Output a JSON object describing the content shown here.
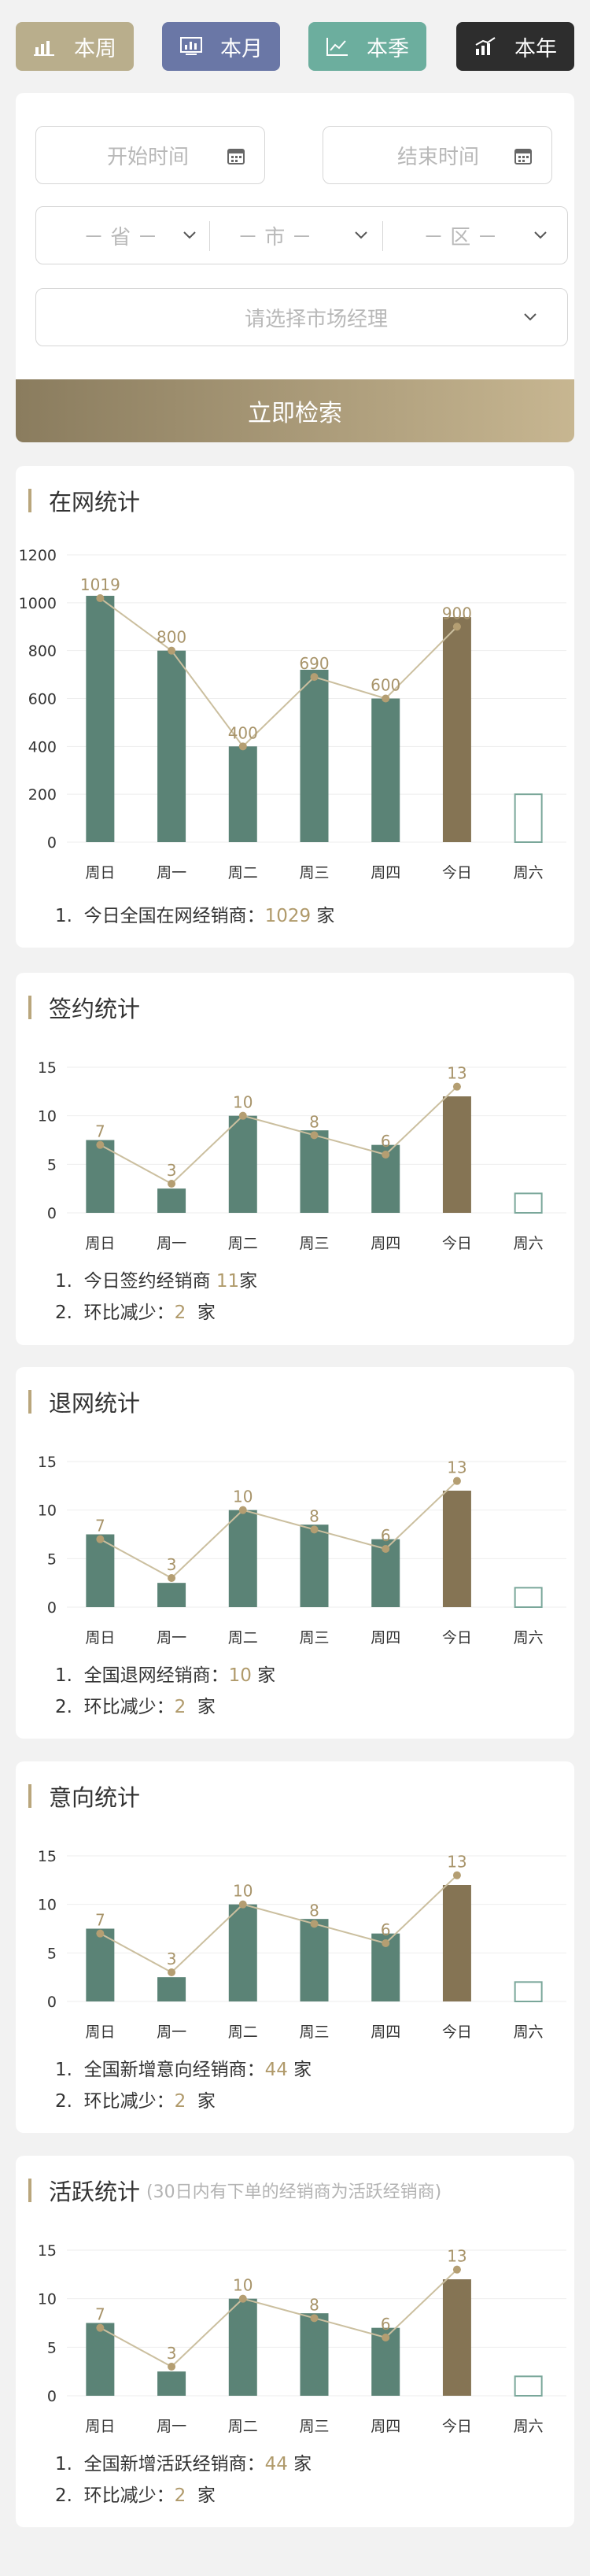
{
  "period_tabs": [
    {
      "label": "本周",
      "icon": "bar-chart-icon"
    },
    {
      "label": "本月",
      "icon": "presentation-chart-icon"
    },
    {
      "label": "本季",
      "icon": "line-chart-icon"
    },
    {
      "label": "本年",
      "icon": "trend-chart-icon"
    }
  ],
  "filters": {
    "start_placeholder": "开始时间",
    "end_placeholder": "结束时间",
    "province": "－ 省 －",
    "city": "－ 市 －",
    "district": "－ 区 －",
    "manager_placeholder": "请选择市场经理",
    "search_label": "立即检索"
  },
  "colors": {
    "bar": "#5b8376",
    "today_bar": "#857454",
    "line": "#cbbf9f",
    "dot": "#b49e72",
    "accent": "#b09a6b"
  },
  "cards": [
    {
      "title": "在网统计",
      "subtitle": "",
      "notes": [
        {
          "prefix": "1.",
          "text": "今日全国在网经销商：",
          "value": "1029",
          "unit": " 家"
        }
      ]
    },
    {
      "title": "签约统计",
      "subtitle": "",
      "notes": [
        {
          "prefix": "1.",
          "text": "今日签约经销商 ",
          "value": "11",
          "unit": "家"
        },
        {
          "prefix": "2.",
          "text": "环比减少：",
          "value": "2",
          "unit": "  家"
        }
      ]
    },
    {
      "title": "退网统计",
      "subtitle": "",
      "notes": [
        {
          "prefix": "1.",
          "text": "全国退网经销商：",
          "value": "10",
          "unit": " 家"
        },
        {
          "prefix": "2.",
          "text": "环比减少：",
          "value": "2",
          "unit": "  家"
        }
      ]
    },
    {
      "title": "意向统计",
      "subtitle": "",
      "notes": [
        {
          "prefix": "1.",
          "text": "全国新增意向经销商：",
          "value": "44",
          "unit": " 家"
        },
        {
          "prefix": "2.",
          "text": "环比减少：",
          "value": "2",
          "unit": "  家"
        }
      ]
    },
    {
      "title": "活跃统计",
      "subtitle": "(30日内有下单的经销商为活跃经销商)",
      "notes": [
        {
          "prefix": "1.",
          "text": "全国新增活跃经销商：",
          "value": "44",
          "unit": " 家"
        },
        {
          "prefix": "2.",
          "text": "环比减少：",
          "value": "2",
          "unit": "  家"
        }
      ]
    }
  ],
  "chart_data": [
    {
      "type": "bar",
      "categories": [
        "周日",
        "周一",
        "周二",
        "周三",
        "周四",
        "今日",
        "周六"
      ],
      "values": [
        1029,
        800,
        400,
        720,
        600,
        940,
        200
      ],
      "line_values": [
        1019,
        800,
        400,
        690,
        600,
        900
      ],
      "label_values": [
        1019,
        800,
        400,
        690,
        600,
        900
      ],
      "yticks": [
        0,
        200,
        400,
        600,
        800,
        1000,
        1200
      ],
      "ylim": [
        0,
        1200
      ],
      "highlight_index": 5,
      "outline_index": 6,
      "grid": true
    },
    {
      "type": "bar",
      "categories": [
        "周日",
        "周一",
        "周二",
        "周三",
        "周四",
        "今日",
        "周六"
      ],
      "values": [
        7.5,
        2.5,
        10,
        8.5,
        7,
        12,
        2
      ],
      "line_values": [
        7,
        3,
        10,
        8,
        6,
        13
      ],
      "label_values": [
        7,
        3,
        10,
        8,
        6,
        13
      ],
      "yticks": [
        0,
        5,
        10,
        15
      ],
      "ylim": [
        0,
        15
      ],
      "highlight_index": 5,
      "outline_index": 6,
      "grid": true
    },
    {
      "type": "bar",
      "categories": [
        "周日",
        "周一",
        "周二",
        "周三",
        "周四",
        "今日",
        "周六"
      ],
      "values": [
        7.5,
        2.5,
        10,
        8.5,
        7,
        12,
        2
      ],
      "line_values": [
        7,
        3,
        10,
        8,
        6,
        13
      ],
      "label_values": [
        7,
        3,
        10,
        8,
        6,
        13
      ],
      "yticks": [
        0,
        5,
        10,
        15
      ],
      "ylim": [
        0,
        15
      ],
      "highlight_index": 5,
      "outline_index": 6,
      "grid": true
    },
    {
      "type": "bar",
      "categories": [
        "周日",
        "周一",
        "周二",
        "周三",
        "周四",
        "今日",
        "周六"
      ],
      "values": [
        7.5,
        2.5,
        10,
        8.5,
        7,
        12,
        2
      ],
      "line_values": [
        7,
        3,
        10,
        8,
        6,
        13
      ],
      "label_values": [
        7,
        3,
        10,
        8,
        6,
        13
      ],
      "yticks": [
        0,
        5,
        10,
        15
      ],
      "ylim": [
        0,
        15
      ],
      "highlight_index": 5,
      "outline_index": 6,
      "grid": true
    },
    {
      "type": "bar",
      "categories": [
        "周日",
        "周一",
        "周二",
        "周三",
        "周四",
        "今日",
        "周六"
      ],
      "values": [
        7.5,
        2.5,
        10,
        8.5,
        7,
        12,
        2
      ],
      "line_values": [
        7,
        3,
        10,
        8,
        6,
        13
      ],
      "label_values": [
        7,
        3,
        10,
        8,
        6,
        13
      ],
      "yticks": [
        0,
        5,
        10,
        15
      ],
      "ylim": [
        0,
        15
      ],
      "highlight_index": 5,
      "outline_index": 6,
      "grid": true
    }
  ]
}
